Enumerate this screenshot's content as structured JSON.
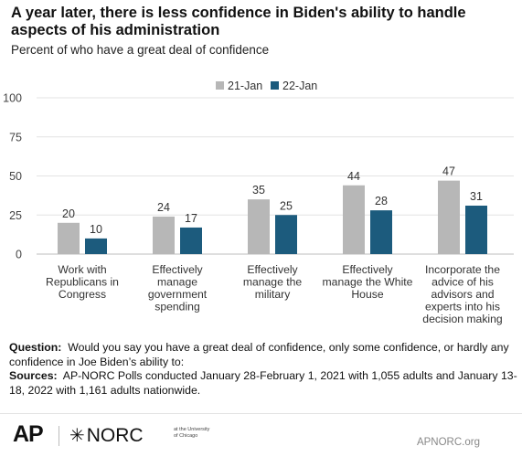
{
  "title": "A year later, there is less confidence in Biden's ability to handle aspects of his administration",
  "subtitle": "Percent of who have a great deal of confidence",
  "chart_data": {
    "type": "bar",
    "categories": [
      [
        "Work with",
        "Republicans in",
        "Congress"
      ],
      [
        "Effectively",
        "manage",
        "government",
        "spending"
      ],
      [
        "Effectively",
        "manage the",
        "military"
      ],
      [
        "Effectively",
        "manage the White",
        "House"
      ],
      [
        "Incorporate the",
        "advice of his",
        "advisors and",
        "experts into his",
        "decision making"
      ]
    ],
    "series": [
      {
        "name": "21-Jan",
        "color": "#b7b7b7",
        "values": [
          20,
          24,
          35,
          44,
          47
        ]
      },
      {
        "name": "22-Jan",
        "color": "#1c5b7d",
        "values": [
          10,
          17,
          25,
          28,
          31
        ]
      }
    ],
    "ylim": [
      0,
      100
    ],
    "yticks": [
      0,
      25,
      50,
      75,
      100
    ],
    "grid": true,
    "legend": "top-center"
  },
  "footer": {
    "question_label": "Question:",
    "question_text": "Would you say you have a great deal of confidence, only some confidence, or hardly any confidence in Joe Biden’s ability to:",
    "sources_label": "Sources:",
    "sources_text": "AP-NORC Polls conducted January 28-February 1, 2021 with 1,055 adults and January 13-18, 2022 with 1,161 adults nationwide."
  },
  "logos": {
    "ap": "AP",
    "norc": "NORC",
    "norc_sub": "at the University of Chicago",
    "credit": "APNORC.org"
  }
}
